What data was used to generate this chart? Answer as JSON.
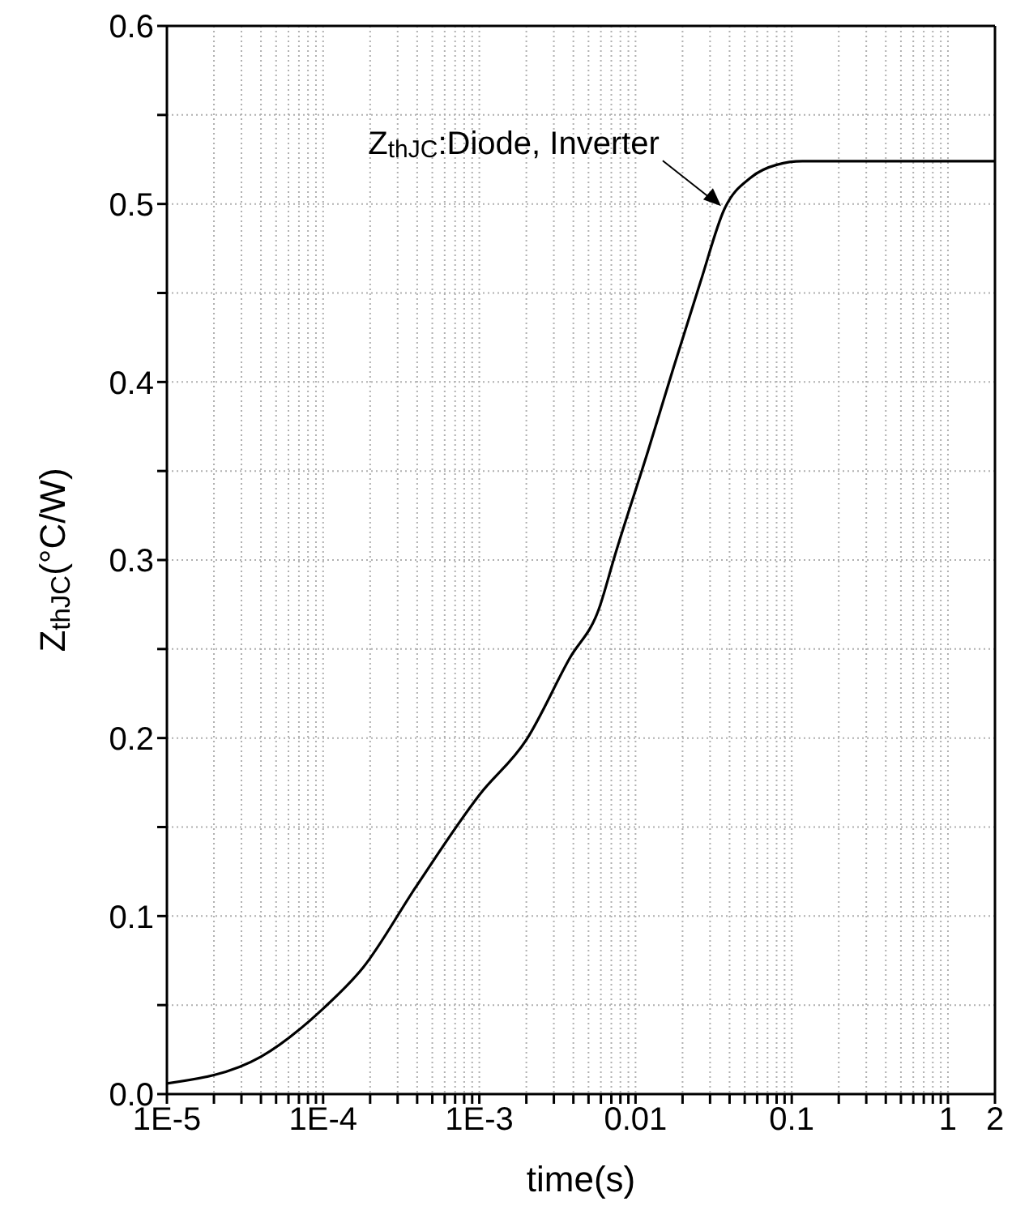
{
  "chart_data": {
    "type": "line",
    "xlabel": "time(s)",
    "ylabel": "Z$_{thJC}$(°C/W)",
    "log": "x",
    "grid": true,
    "marker": "none",
    "line_style": "solid",
    "x": [
      1e-05,
      4e-05,
      0.0001,
      0.00018,
      0.00039,
      0.001,
      0.002,
      0.0038,
      0.0058,
      0.0074,
      0.012,
      0.0175,
      0.026,
      0.037,
      0.055,
      0.08,
      0.117,
      0.3,
      1,
      2
    ],
    "series": [
      {
        "color": "#000000",
        "values": [
          0.006,
          0.021,
          0.048,
          0.071,
          0.116,
          0.168,
          0.199,
          0.245,
          0.272,
          0.303,
          0.361,
          0.408,
          0.456,
          0.497,
          0.515,
          0.522,
          0.524,
          0.524,
          0.524,
          0.524
        ]
      }
    ],
    "xlim": [
      1e-05,
      2
    ],
    "xticks": [
      {
        "value": 1e-05,
        "label": "1E-5"
      },
      {
        "value": 2e-05,
        "label": null
      },
      {
        "value": 3e-05,
        "label": null
      },
      {
        "value": 4e-05,
        "label": null
      },
      {
        "value": 5e-05,
        "label": null
      },
      {
        "value": 6e-05,
        "label": null
      },
      {
        "value": 7e-05,
        "label": null
      },
      {
        "value": 8e-05,
        "label": null
      },
      {
        "value": 9e-05,
        "label": null
      },
      {
        "value": 0.0001,
        "label": "1E-4"
      },
      {
        "value": 0.0002,
        "label": null
      },
      {
        "value": 0.0003,
        "label": null
      },
      {
        "value": 0.0004,
        "label": null
      },
      {
        "value": 0.0005,
        "label": null
      },
      {
        "value": 0.0006,
        "label": null
      },
      {
        "value": 0.0007,
        "label": null
      },
      {
        "value": 0.0008,
        "label": null
      },
      {
        "value": 0.0009,
        "label": null
      },
      {
        "value": 0.001,
        "label": "1E-3"
      },
      {
        "value": 0.002,
        "label": null
      },
      {
        "value": 0.003,
        "label": null
      },
      {
        "value": 0.004,
        "label": null
      },
      {
        "value": 0.005,
        "label": null
      },
      {
        "value": 0.006,
        "label": null
      },
      {
        "value": 0.007,
        "label": null
      },
      {
        "value": 0.008,
        "label": null
      },
      {
        "value": 0.009,
        "label": null
      },
      {
        "value": 0.01,
        "label": "0.01"
      },
      {
        "value": 0.02,
        "label": null
      },
      {
        "value": 0.03,
        "label": null
      },
      {
        "value": 0.04,
        "label": null
      },
      {
        "value": 0.05,
        "label": null
      },
      {
        "value": 0.06,
        "label": null
      },
      {
        "value": 0.07,
        "label": null
      },
      {
        "value": 0.08,
        "label": null
      },
      {
        "value": 0.09,
        "label": null
      },
      {
        "value": 0.1,
        "label": "0.1"
      },
      {
        "value": 0.2,
        "label": null
      },
      {
        "value": 0.3,
        "label": null
      },
      {
        "value": 0.4,
        "label": null
      },
      {
        "value": 0.5,
        "label": null
      },
      {
        "value": 0.6,
        "label": null
      },
      {
        "value": 0.7,
        "label": null
      },
      {
        "value": 0.8,
        "label": null
      },
      {
        "value": 0.9,
        "label": null
      },
      {
        "value": 1,
        "label": "1"
      },
      {
        "value": 2,
        "label": "2"
      }
    ],
    "ylim": [
      0,
      0.6
    ],
    "yticks": [
      {
        "value": 0,
        "label": "0.0"
      },
      {
        "value": 0.05,
        "label": null
      },
      {
        "value": 0.1,
        "label": "0.1"
      },
      {
        "value": 0.15,
        "label": null
      },
      {
        "value": 0.2,
        "label": "0.2"
      },
      {
        "value": 0.25,
        "label": null
      },
      {
        "value": 0.3,
        "label": "0.3"
      },
      {
        "value": 0.35,
        "label": null
      },
      {
        "value": 0.4,
        "label": "0.4"
      },
      {
        "value": 0.45,
        "label": null
      },
      {
        "value": 0.5,
        "label": "0.5"
      },
      {
        "value": 0.55,
        "label": null
      },
      {
        "value": 0.6,
        "label": "0.6"
      }
    ],
    "annotations": [
      {
        "text": "Z$_{thJC}$:Diode, Inverter",
        "x": 0.037,
        "y": 0.497
      }
    ]
  }
}
